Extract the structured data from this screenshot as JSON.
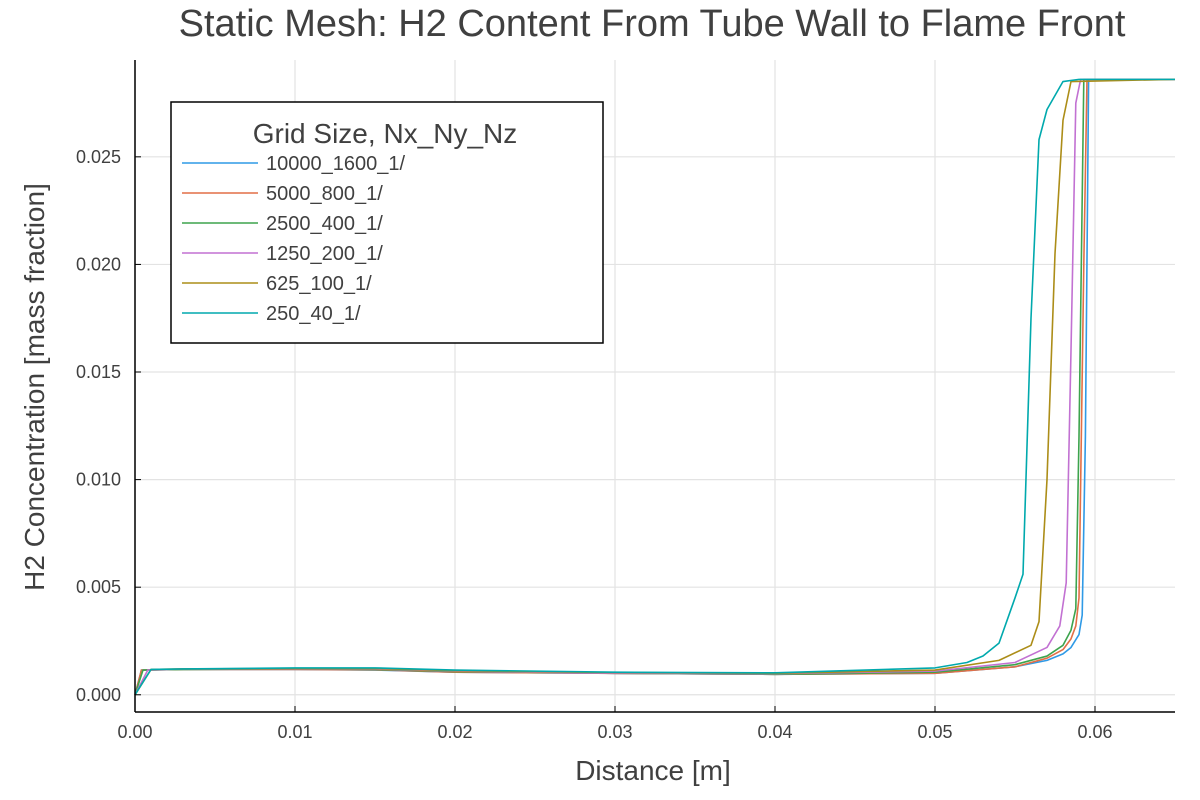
{
  "chart_data": {
    "type": "line",
    "title": "Static Mesh: H2 Content From Tube Wall to Flame Front",
    "xlabel": "Distance [m]",
    "ylabel": "H2 Concentration [mass fraction]",
    "xlim": [
      0,
      0.065
    ],
    "ylim": [
      -0.0008,
      0.0295
    ],
    "xticks": [
      0,
      0.01,
      0.02,
      0.03,
      0.04,
      0.05,
      0.06
    ],
    "xtick_labels": [
      "0.00",
      "0.01",
      "0.02",
      "0.03",
      "0.04",
      "0.05",
      "0.06"
    ],
    "yticks": [
      0,
      0.005,
      0.01,
      0.015,
      0.02,
      0.025
    ],
    "ytick_labels": [
      "0.000",
      "0.005",
      "0.010",
      "0.015",
      "0.020",
      "0.025"
    ],
    "grid": true,
    "legend_title": "Grid Size, Nx_Ny_Nz",
    "legend_position": "top-left",
    "series": [
      {
        "name": "10000_1600_1/",
        "color": "#2f9ae6",
        "x": [
          0.0,
          0.0004,
          0.003,
          0.01,
          0.015,
          0.02,
          0.03,
          0.04,
          0.05,
          0.055,
          0.057,
          0.058,
          0.0585,
          0.059,
          0.0592,
          0.0594,
          0.0596,
          0.065
        ],
        "y": [
          0.0,
          0.00115,
          0.00118,
          0.00118,
          0.00115,
          0.00105,
          0.001,
          0.00095,
          0.001,
          0.0013,
          0.0016,
          0.0019,
          0.0022,
          0.0028,
          0.0037,
          0.012,
          0.0286,
          0.0286
        ]
      },
      {
        "name": "5000_800_1/",
        "color": "#e26f46",
        "x": [
          0.0,
          0.0004,
          0.003,
          0.01,
          0.015,
          0.02,
          0.03,
          0.04,
          0.05,
          0.055,
          0.057,
          0.058,
          0.0585,
          0.0588,
          0.059,
          0.0593,
          0.0595,
          0.065
        ],
        "y": [
          0.0,
          0.00115,
          0.00118,
          0.00118,
          0.00116,
          0.00105,
          0.001,
          0.00095,
          0.001,
          0.0013,
          0.0017,
          0.0021,
          0.0026,
          0.0032,
          0.0045,
          0.02,
          0.0286,
          0.0286
        ]
      },
      {
        "name": "2500_400_1/",
        "color": "#3da44d",
        "x": [
          0.0,
          0.0005,
          0.003,
          0.01,
          0.015,
          0.02,
          0.03,
          0.04,
          0.05,
          0.055,
          0.057,
          0.058,
          0.0585,
          0.0588,
          0.059,
          0.0593,
          0.065
        ],
        "y": [
          0.0,
          0.00115,
          0.00118,
          0.0012,
          0.00118,
          0.00108,
          0.001,
          0.00095,
          0.00105,
          0.0014,
          0.0018,
          0.0023,
          0.003,
          0.004,
          0.012,
          0.0286,
          0.0286
        ]
      },
      {
        "name": "1250_200_1/",
        "color": "#c271d2",
        "x": [
          0.0,
          0.0008,
          0.003,
          0.01,
          0.015,
          0.02,
          0.03,
          0.04,
          0.05,
          0.055,
          0.057,
          0.0578,
          0.0582,
          0.0585,
          0.0588,
          0.0591,
          0.065
        ],
        "y": [
          0.0,
          0.00115,
          0.0012,
          0.0012,
          0.0012,
          0.0011,
          0.001,
          0.00098,
          0.0011,
          0.0015,
          0.0022,
          0.0032,
          0.0052,
          0.016,
          0.0275,
          0.0286,
          0.0286
        ]
      },
      {
        "name": "625_100_1/",
        "color": "#ac8d18",
        "x": [
          0.0,
          0.001,
          0.003,
          0.01,
          0.015,
          0.02,
          0.03,
          0.04,
          0.05,
          0.054,
          0.056,
          0.0565,
          0.057,
          0.0575,
          0.058,
          0.0585,
          0.065
        ],
        "y": [
          0.0,
          0.00118,
          0.0012,
          0.00122,
          0.00122,
          0.00112,
          0.00103,
          0.001,
          0.00115,
          0.0016,
          0.0023,
          0.0034,
          0.01,
          0.0205,
          0.0267,
          0.0285,
          0.0286
        ]
      },
      {
        "name": "250_40_1/",
        "color": "#00a9ad",
        "x": [
          0.0,
          0.001,
          0.003,
          0.01,
          0.015,
          0.02,
          0.03,
          0.04,
          0.05,
          0.052,
          0.053,
          0.054,
          0.055,
          0.0555,
          0.056,
          0.0565,
          0.057,
          0.058,
          0.059,
          0.065
        ],
        "y": [
          0.0,
          0.00118,
          0.0012,
          0.00125,
          0.00125,
          0.00115,
          0.00105,
          0.00102,
          0.00125,
          0.0015,
          0.0018,
          0.0024,
          0.0045,
          0.0056,
          0.0175,
          0.0258,
          0.0272,
          0.0285,
          0.0286,
          0.0286
        ]
      }
    ]
  }
}
